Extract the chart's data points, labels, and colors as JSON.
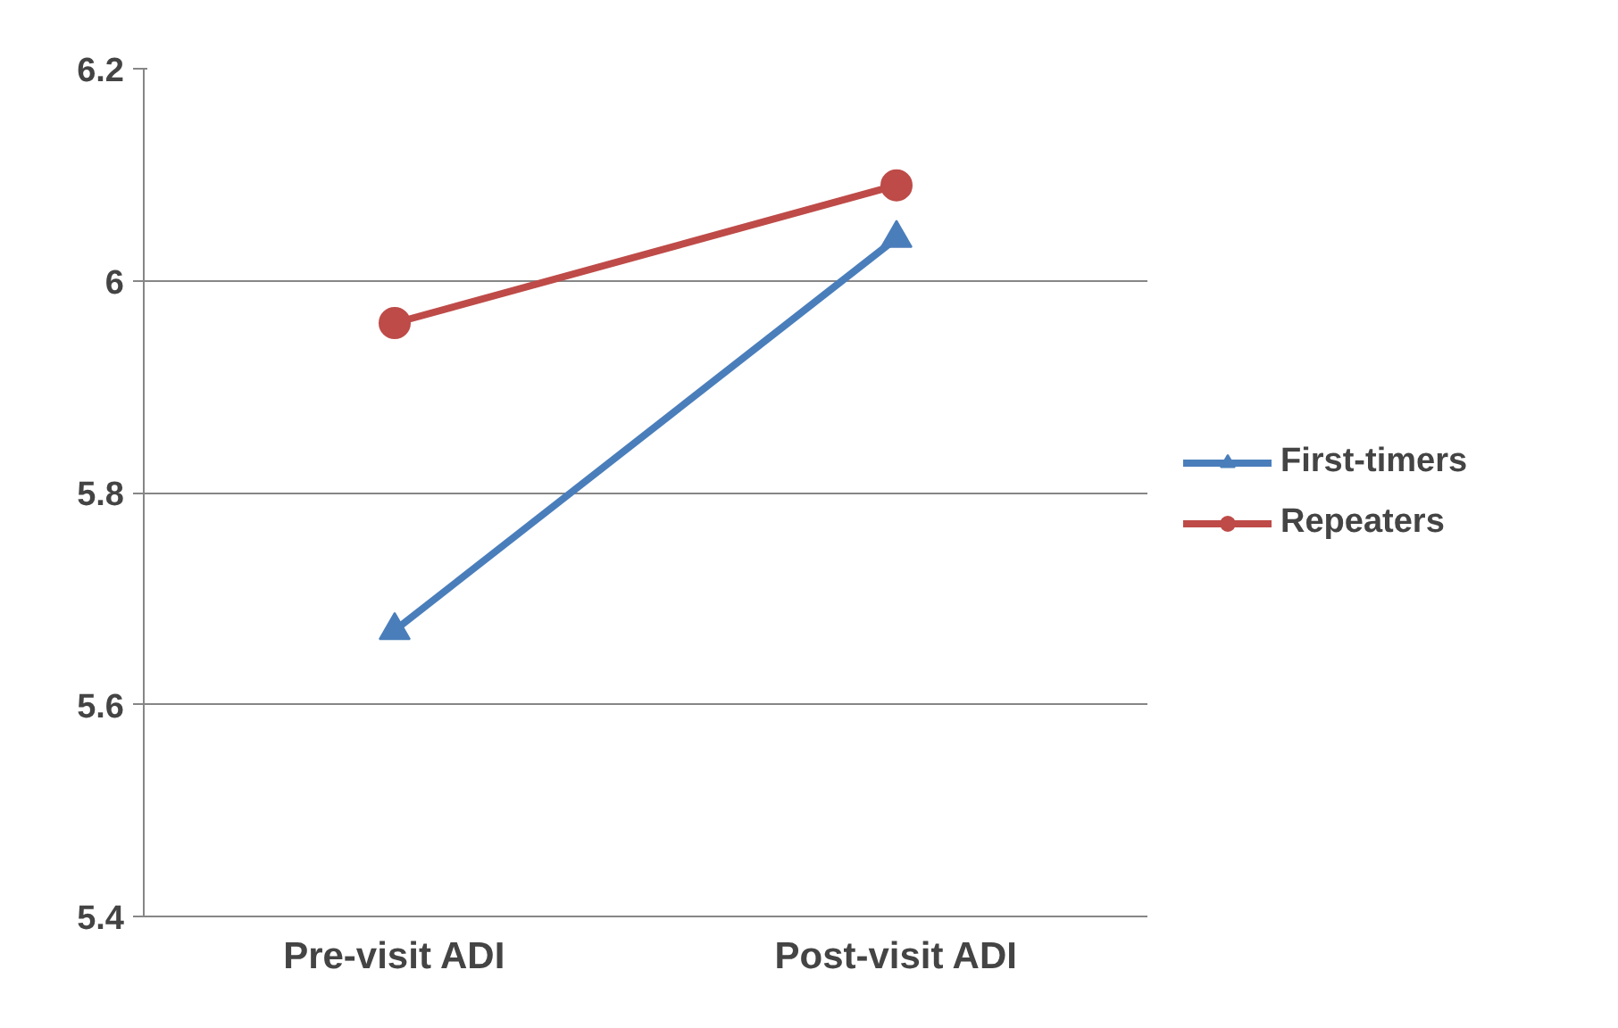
{
  "chart_data": {
    "type": "line",
    "categories": [
      "Pre-visit ADI",
      "Post-visit ADI"
    ],
    "series": [
      {
        "name": "First-timers",
        "color": "#4a7ebb",
        "values": [
          5.67,
          6.04
        ],
        "marker": "triangle"
      },
      {
        "name": "Repeaters",
        "color": "#be4b48",
        "values": [
          5.96,
          6.09
        ],
        "marker": "circle"
      }
    ],
    "ylim": [
      5.4,
      6.2
    ],
    "yticks": [
      5.4,
      5.6,
      5.8,
      6,
      6.2
    ],
    "grid": "y",
    "legend": "right",
    "line_style": "solid"
  }
}
